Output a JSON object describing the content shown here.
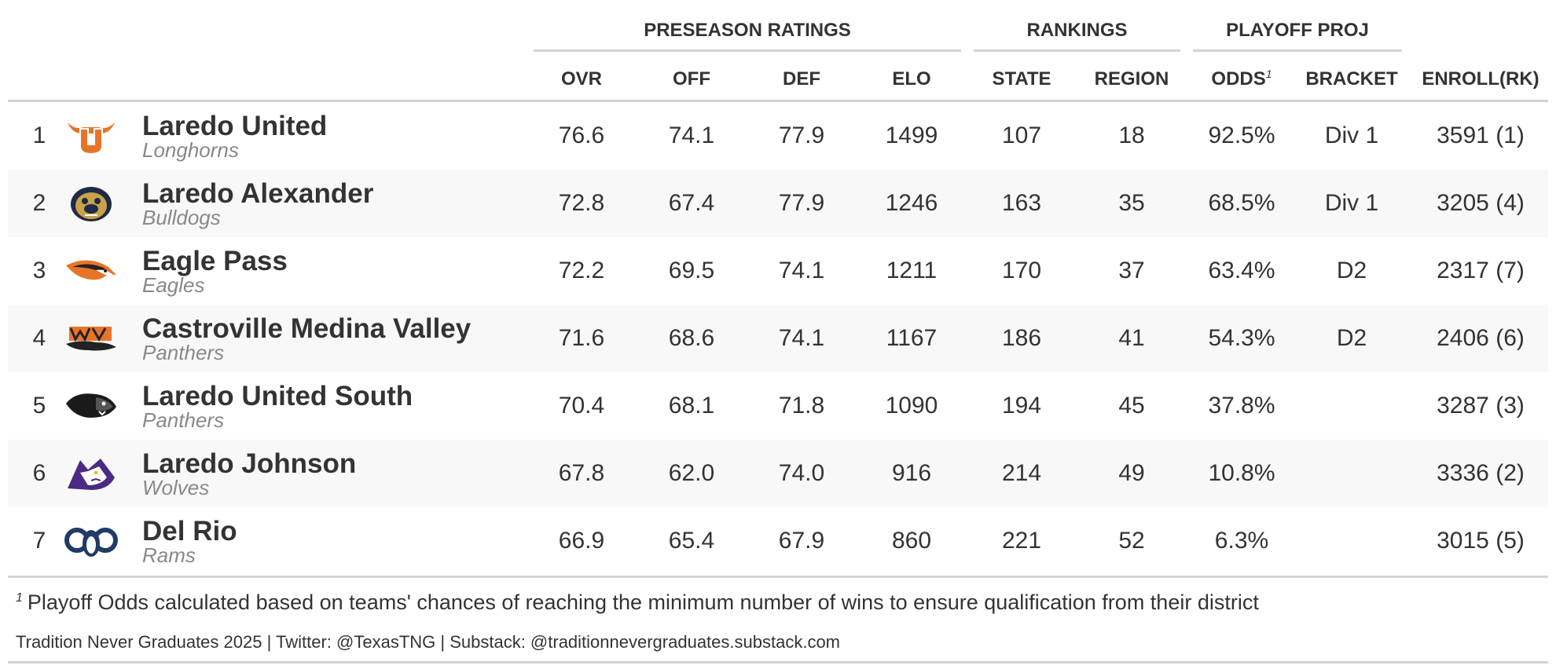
{
  "spanners": {
    "preseason": "PRESEASON RATINGS",
    "rankings": "RANKINGS",
    "playoff": "PLAYOFF PROJ"
  },
  "columns": {
    "ovr": "OVR",
    "off": "OFF",
    "def": "DEF",
    "elo": "ELO",
    "state": "STATE",
    "region": "REGION",
    "odds": "ODDS",
    "odds_marker": "1",
    "bracket": "BRACKET",
    "enroll": "ENROLL(RK)"
  },
  "rows": [
    {
      "rank": "1",
      "team": "Laredo United",
      "mascot": "Longhorns",
      "logo": "laredo-united-longhorns-logo",
      "ovr": "76.6",
      "off": "74.1",
      "def": "77.9",
      "elo": "1499",
      "state": "107",
      "region": "18",
      "odds": "92.5%",
      "bracket": "Div 1",
      "enroll": "3591 (1)"
    },
    {
      "rank": "2",
      "team": "Laredo Alexander",
      "mascot": "Bulldogs",
      "logo": "laredo-alexander-bulldogs-logo",
      "ovr": "72.8",
      "off": "67.4",
      "def": "77.9",
      "elo": "1246",
      "state": "163",
      "region": "35",
      "odds": "68.5%",
      "bracket": "Div 1",
      "enroll": "3205 (4)"
    },
    {
      "rank": "3",
      "team": "Eagle Pass",
      "mascot": "Eagles",
      "logo": "eagle-pass-eagles-logo",
      "ovr": "72.2",
      "off": "69.5",
      "def": "74.1",
      "elo": "1211",
      "state": "170",
      "region": "37",
      "odds": "63.4%",
      "bracket": "D2",
      "enroll": "2317 (7)"
    },
    {
      "rank": "4",
      "team": "Castroville Medina Valley",
      "mascot": "Panthers",
      "logo": "medina-valley-panthers-logo",
      "ovr": "71.6",
      "off": "68.6",
      "def": "74.1",
      "elo": "1167",
      "state": "186",
      "region": "41",
      "odds": "54.3%",
      "bracket": "D2",
      "enroll": "2406 (6)"
    },
    {
      "rank": "5",
      "team": "Laredo United South",
      "mascot": "Panthers",
      "logo": "united-south-panthers-logo",
      "ovr": "70.4",
      "off": "68.1",
      "def": "71.8",
      "elo": "1090",
      "state": "194",
      "region": "45",
      "odds": "37.8%",
      "bracket": "",
      "enroll": "3287 (3)"
    },
    {
      "rank": "6",
      "team": "Laredo Johnson",
      "mascot": "Wolves",
      "logo": "laredo-johnson-wolves-logo",
      "ovr": "67.8",
      "off": "62.0",
      "def": "74.0",
      "elo": "916",
      "state": "214",
      "region": "49",
      "odds": "10.8%",
      "bracket": "",
      "enroll": "3336 (2)"
    },
    {
      "rank": "7",
      "team": "Del Rio",
      "mascot": "Rams",
      "logo": "del-rio-rams-logo",
      "ovr": "66.9",
      "off": "65.4",
      "def": "67.9",
      "elo": "860",
      "state": "221",
      "region": "52",
      "odds": "6.3%",
      "bracket": "",
      "enroll": "3015 (5)"
    }
  ],
  "footnote": {
    "marker": "1",
    "text": "Playoff Odds calculated based on teams' chances of reaching the minimum number of wins to ensure qualification from their district"
  },
  "source": "Tradition Never Graduates 2025 | Twitter: @TexasTNG | Substack: @traditionnevergraduates.substack.com",
  "colors": {
    "text": "#333333",
    "mascot": "#888888",
    "stripe": "#f8f8f8",
    "rule": "#d3d3d3"
  }
}
